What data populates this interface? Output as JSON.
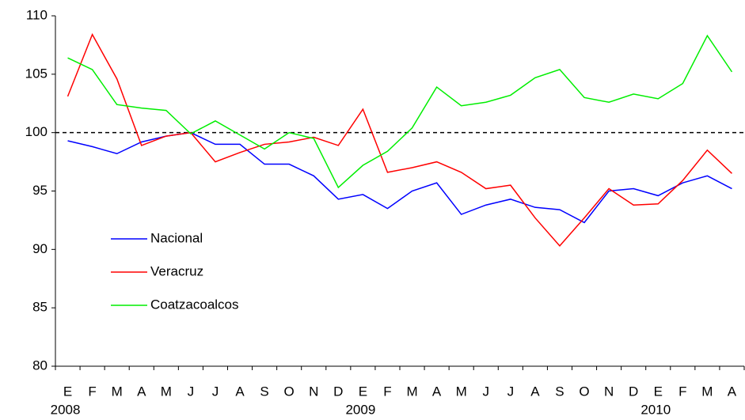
{
  "chart_data": {
    "type": "line",
    "categories": [
      "E",
      "F",
      "M",
      "A",
      "M",
      "J",
      "J",
      "A",
      "S",
      "O",
      "N",
      "D",
      "E",
      "F",
      "M",
      "A",
      "M",
      "J",
      "J",
      "A",
      "S",
      "O",
      "N",
      "D",
      "E",
      "F",
      "M",
      "A"
    ],
    "year_labels": [
      "2008",
      null,
      null,
      null,
      null,
      null,
      null,
      null,
      null,
      null,
      null,
      null,
      "2009",
      null,
      null,
      null,
      null,
      null,
      null,
      null,
      null,
      null,
      null,
      null,
      "2010",
      null,
      null,
      null
    ],
    "series": [
      {
        "name": "Nacional",
        "color": "#0000ff",
        "values": [
          99.3,
          98.8,
          98.2,
          99.2,
          99.7,
          100.0,
          99.0,
          99.0,
          97.3,
          97.3,
          96.3,
          94.3,
          94.7,
          93.5,
          95.0,
          95.7,
          93.0,
          93.8,
          94.3,
          93.6,
          93.4,
          92.3,
          95.0,
          95.2,
          94.6,
          95.7,
          96.3,
          95.2
        ]
      },
      {
        "name": "Veracruz",
        "color": "#ff0000",
        "values": [
          103.1,
          108.4,
          104.6,
          98.9,
          99.7,
          100.0,
          97.5,
          98.3,
          99.0,
          99.2,
          99.6,
          98.9,
          102.0,
          96.6,
          97.0,
          97.5,
          96.6,
          95.2,
          95.5,
          92.7,
          90.3,
          92.7,
          95.2,
          93.8,
          93.9,
          95.9,
          98.5,
          96.5
        ]
      },
      {
        "name": "Coatzacoalcos",
        "color": "#00ee00",
        "values": [
          106.4,
          105.4,
          102.4,
          102.1,
          101.9,
          99.9,
          101.0,
          99.8,
          98.6,
          100.0,
          99.5,
          95.3,
          97.2,
          98.4,
          100.4,
          103.9,
          102.3,
          102.6,
          103.2,
          104.7,
          105.4,
          103.0,
          102.6,
          103.3,
          102.9,
          104.2,
          108.3,
          105.2
        ]
      }
    ],
    "reference_line": 100,
    "ylim": [
      80,
      110
    ],
    "yticks": [
      80,
      85,
      90,
      95,
      100,
      105,
      110
    ],
    "legend": "left",
    "grid": false
  }
}
